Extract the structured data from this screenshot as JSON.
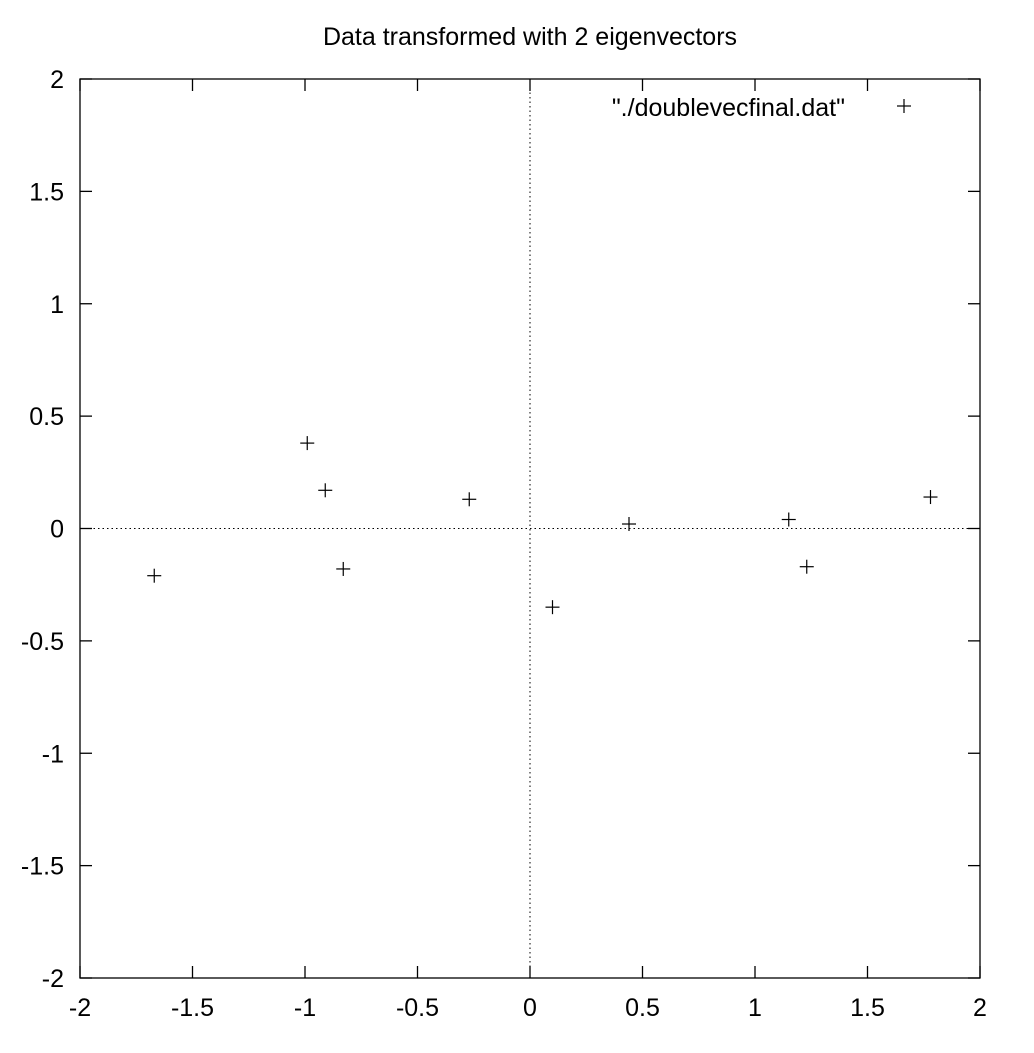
{
  "chart_data": {
    "type": "scatter",
    "title": "Data transformed with 2 eigenvectors",
    "xlabel": "",
    "ylabel": "",
    "xlim": [
      -2,
      2
    ],
    "ylim": [
      -2,
      2
    ],
    "xticks": [
      -2,
      -1.5,
      -1,
      -0.5,
      0,
      0.5,
      1,
      1.5,
      2
    ],
    "yticks": [
      -2,
      -1.5,
      -1,
      -0.5,
      0,
      0.5,
      1,
      1.5,
      2
    ],
    "xtick_labels": [
      "-2",
      "-1.5",
      "-1",
      "-0.5",
      "0",
      "0.5",
      "1",
      "1.5",
      "2"
    ],
    "ytick_labels": [
      "-2",
      "-1.5",
      "-1",
      "-0.5",
      "0",
      "0.5",
      "1",
      "1.5",
      "2"
    ],
    "zero_axes": true,
    "grid": false,
    "legend_position": "top-right",
    "series": [
      {
        "name": "\"./doublevecfinal.dat\"",
        "marker": "plus",
        "color": "#000000",
        "points": [
          {
            "x": -1.67,
            "y": -0.21
          },
          {
            "x": -0.99,
            "y": 0.38
          },
          {
            "x": -0.91,
            "y": 0.17
          },
          {
            "x": -0.83,
            "y": -0.18
          },
          {
            "x": -0.27,
            "y": 0.13
          },
          {
            "x": 0.1,
            "y": -0.35
          },
          {
            "x": 0.44,
            "y": 0.02
          },
          {
            "x": 1.15,
            "y": 0.04
          },
          {
            "x": 1.23,
            "y": -0.17
          },
          {
            "x": 1.78,
            "y": 0.14
          }
        ]
      }
    ]
  }
}
